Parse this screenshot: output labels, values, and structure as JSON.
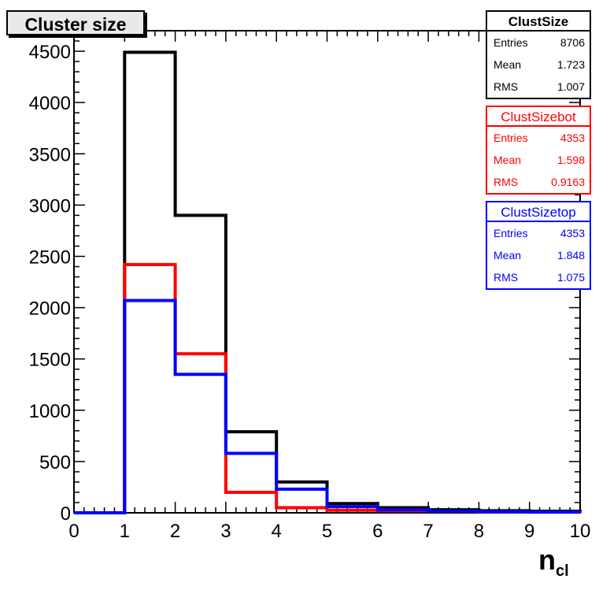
{
  "chart_data": {
    "type": "histogram",
    "title": "Cluster size",
    "xlabel": "n",
    "xlabel_sub": "cl",
    "ylabel": "",
    "xlim": [
      0,
      10
    ],
    "ylim": [
      0,
      4700
    ],
    "x_ticks": [
      "0",
      "1",
      "2",
      "3",
      "4",
      "5",
      "6",
      "7",
      "8",
      "9",
      "10"
    ],
    "y_ticks": [
      "0",
      "500",
      "1000",
      "1500",
      "2000",
      "2500",
      "3000",
      "3500",
      "4000",
      "4500"
    ],
    "bin_edges": [
      0,
      1,
      2,
      3,
      4,
      5,
      6,
      7,
      8,
      9,
      10
    ],
    "series": [
      {
        "name": "ClustSize",
        "color": "#000000",
        "values": [
          0,
          4490,
          2900,
          790,
          300,
          90,
          50,
          30,
          20,
          15
        ],
        "stats": {
          "Entries": "8706",
          "Mean": "1.723",
          "RMS": "1.007"
        }
      },
      {
        "name": "ClustSizebot",
        "color": "#ff0000",
        "values": [
          0,
          2420,
          1550,
          200,
          50,
          25,
          20,
          15,
          10,
          8
        ],
        "stats": {
          "Entries": "4353",
          "Mean": "1.598",
          "RMS": "0.9163"
        }
      },
      {
        "name": "ClustSizetop",
        "color": "#0000ff",
        "values": [
          0,
          2070,
          1350,
          580,
          230,
          60,
          30,
          15,
          10,
          7
        ],
        "stats": {
          "Entries": "4353",
          "Mean": "1.848",
          "RMS": "1.075"
        }
      }
    ],
    "grid": false,
    "legend_placement": "top-right"
  }
}
